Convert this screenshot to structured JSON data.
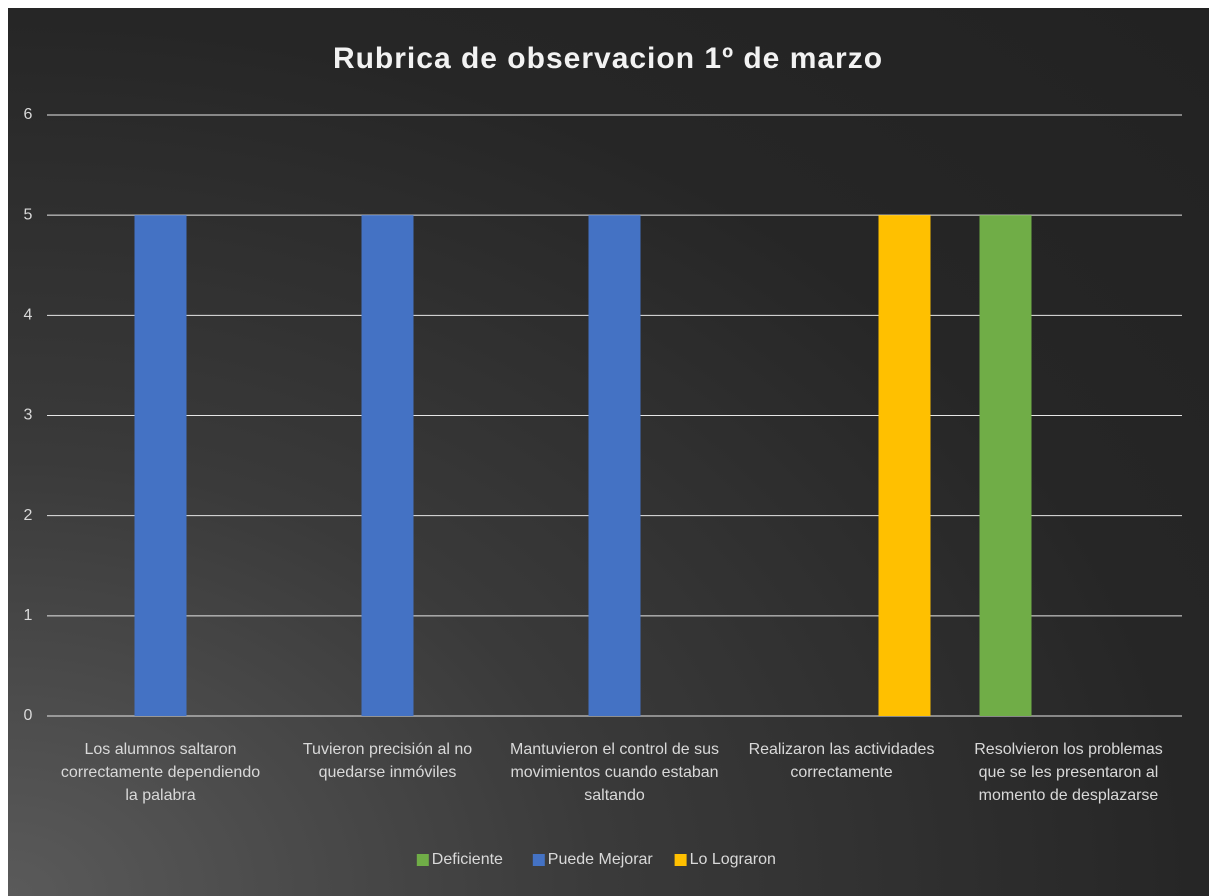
{
  "chart_data": {
    "type": "bar",
    "title": "Rubrica de observacion 1º de marzo",
    "categories": [
      "Los alumnos saltaron correctamente dependiendo la palabra",
      "Tuvieron precisión al no quedarse inmóviles",
      "Mantuvieron el control de sus movimientos cuando estaban saltando",
      "Realizaron las actividades correctamente",
      "Resolvieron los problemas que se les presentaron al momento de desplazarse"
    ],
    "series": [
      {
        "name": "Deficiente",
        "color": "#70ad47",
        "values": [
          null,
          null,
          null,
          null,
          5
        ]
      },
      {
        "name": "Puede Mejorar",
        "color": "#4472c4",
        "values": [
          5,
          5,
          5,
          null,
          null
        ]
      },
      {
        "name": "Lo Lograron",
        "color": "#ffc000",
        "values": [
          null,
          null,
          null,
          5,
          null
        ]
      }
    ],
    "ylim": [
      0,
      6
    ],
    "yticks": [
      0,
      1,
      2,
      3,
      4,
      5,
      6
    ],
    "grid": true,
    "legend": "bottom"
  }
}
